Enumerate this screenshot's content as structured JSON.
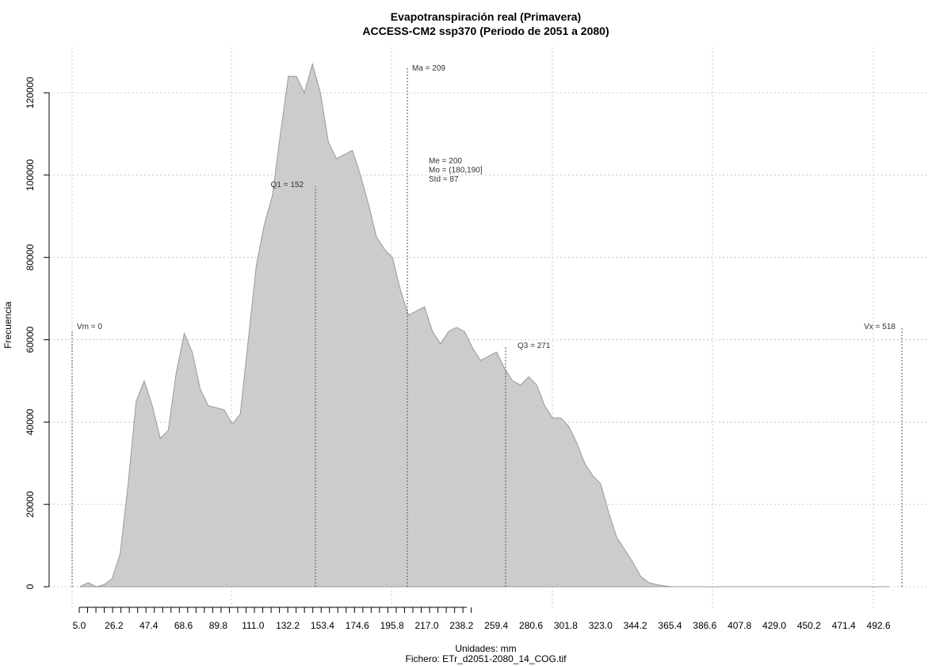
{
  "chart_data": {
    "type": "area",
    "title": "Evapotranspiración real (Primavera)",
    "subtitle": "ACCESS-CM2 ssp370 (Periodo de 2051 a 2080)",
    "xlabel": "Unidades: mm",
    "caption": "Fichero: ETr_d2051-2080_14_COG.tif",
    "ylabel": "Frecuencia",
    "grid": true,
    "xlim": [
      0,
      518
    ],
    "ylim": [
      0,
      125000
    ],
    "x_ticks": [
      "5.0",
      "26.2",
      "47.4",
      "68.6",
      "89.8",
      "111.0",
      "132.2",
      "153.4",
      "174.6",
      "195.8",
      "217.0",
      "238.2",
      "259.4",
      "280.6",
      "301.8",
      "323.0",
      "344.2",
      "365.4",
      "386.6",
      "407.8",
      "429.0",
      "450.2",
      "471.4",
      "492.6"
    ],
    "y_ticks": [
      "0",
      "20000",
      "40000",
      "60000",
      "80000",
      "100000",
      "120000"
    ],
    "x": [
      5,
      10,
      15,
      20,
      25,
      30,
      35,
      40,
      45,
      50,
      55,
      60,
      65,
      70,
      75,
      80,
      85,
      90,
      95,
      100,
      105,
      110,
      115,
      120,
      125,
      130,
      135,
      140,
      145,
      150,
      155,
      160,
      165,
      170,
      175,
      180,
      185,
      190,
      195,
      200,
      205,
      210,
      215,
      220,
      225,
      230,
      235,
      240,
      245,
      250,
      255,
      260,
      265,
      270,
      275,
      280,
      285,
      290,
      295,
      300,
      305,
      310,
      315,
      320,
      325,
      330,
      335,
      340,
      345,
      350,
      355,
      360,
      365,
      370,
      375,
      380,
      385,
      390,
      395,
      400,
      405,
      410,
      415,
      420,
      425,
      430,
      435,
      440,
      445,
      450,
      460,
      470,
      480,
      490,
      500,
      510
    ],
    "values": [
      0,
      1000,
      0,
      500,
      2000,
      8000,
      25000,
      45000,
      50000,
      44000,
      36000,
      38000,
      52000,
      61500,
      57000,
      48000,
      44000,
      43500,
      43000,
      39500,
      42000,
      60000,
      78000,
      88000,
      95000,
      110000,
      124000,
      124000,
      120000,
      127000,
      120000,
      108000,
      104000,
      105000,
      106000,
      100000,
      93000,
      85000,
      82000,
      80000,
      72000,
      66000,
      67000,
      68000,
      62000,
      59000,
      62000,
      63000,
      62000,
      58000,
      55000,
      56000,
      57000,
      53000,
      50000,
      49000,
      51000,
      49000,
      44000,
      41000,
      41000,
      39000,
      35000,
      30000,
      27000,
      25000,
      18000,
      12000,
      9000,
      6000,
      2500,
      1000,
      500,
      200,
      0,
      0,
      0,
      0,
      0,
      0,
      0,
      0,
      0,
      0,
      0,
      0,
      0,
      0,
      0,
      0,
      0,
      0,
      0,
      0,
      0,
      0
    ],
    "annotations": [
      {
        "label": "Vm = 0",
        "x": 0
      },
      {
        "label": "Q1 = 152",
        "x": 152
      },
      {
        "label": "Ma = 209",
        "x": 209
      },
      {
        "label": "Q3 = 271",
        "x": 271
      },
      {
        "label": "Vx = 518",
        "x": 518
      }
    ],
    "stats": [
      "Me = 200",
      "Mo = (180,190]",
      "Std = 87"
    ],
    "colors": {
      "fill": "#cccccc",
      "line": "#999999",
      "grid": "#c8c8c8"
    }
  }
}
